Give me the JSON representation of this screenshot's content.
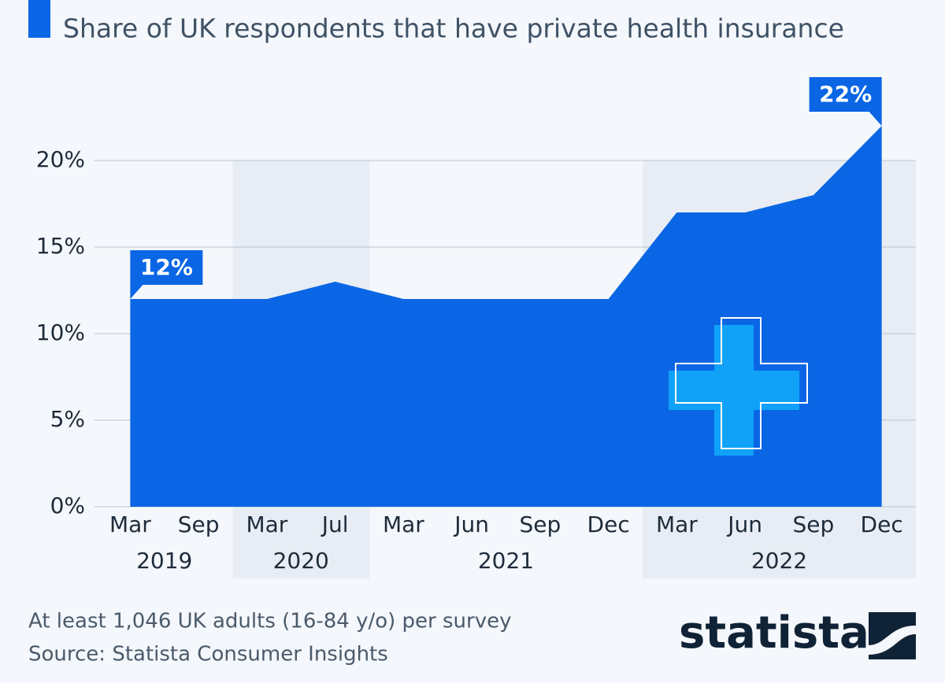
{
  "chart_data": {
    "type": "area",
    "title": "Share of UK respondents that have private health insurance",
    "categories": [
      "Mar",
      "Sep",
      "Mar",
      "Jul",
      "Mar",
      "Jun",
      "Sep",
      "Dec",
      "Mar",
      "Jun",
      "Sep",
      "Dec"
    ],
    "x_groups": [
      "2019",
      null,
      "2020",
      null,
      "2021",
      null,
      null,
      null,
      "2022",
      null,
      null,
      null
    ],
    "values": [
      12,
      12,
      12,
      13,
      12,
      12,
      12,
      12,
      17,
      17,
      18,
      22
    ],
    "value_labels": [
      "12%",
      null,
      null,
      null,
      null,
      null,
      null,
      null,
      null,
      null,
      null,
      "22%"
    ],
    "color": "#0a66e4",
    "ylim": [
      0,
      22
    ],
    "yticks": [
      {
        "value": 0,
        "label": "0%"
      },
      {
        "value": 5,
        "label": "5%"
      },
      {
        "value": 10,
        "label": "10%"
      },
      {
        "value": 15,
        "label": "15%"
      },
      {
        "value": 20,
        "label": "20%"
      }
    ],
    "grid": true
  },
  "footer": {
    "note": "At least 1,046 UK adults (16-84 y/o) per survey",
    "source": "Source: Statista Consumer Insights",
    "brand": "statista"
  }
}
